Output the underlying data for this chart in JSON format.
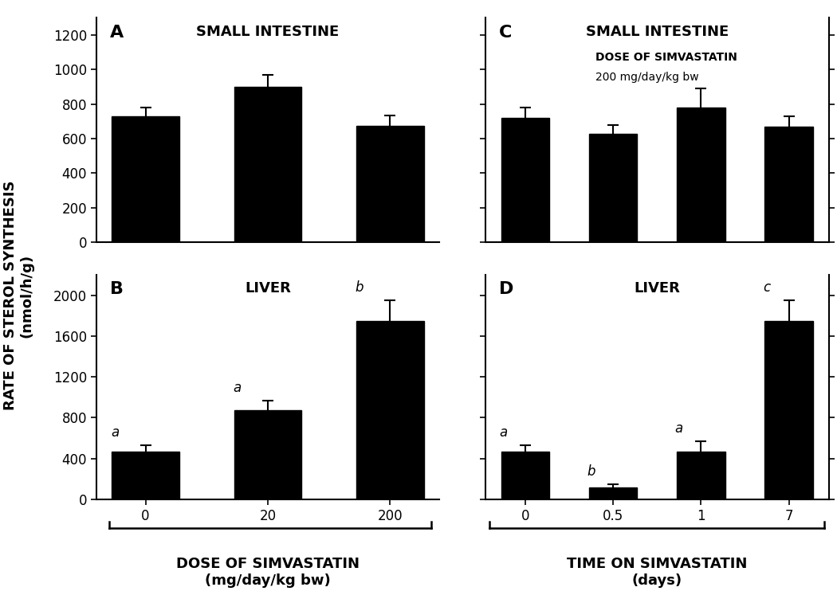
{
  "panel_A": {
    "title": "SMALL INTESTINE",
    "label": "A",
    "x_positions": [
      1,
      2,
      3
    ],
    "values": [
      730,
      900,
      675
    ],
    "errors": [
      50,
      70,
      60
    ],
    "ylim": [
      0,
      1300
    ],
    "yticks": [
      0,
      200,
      400,
      600,
      800,
      1000,
      1200
    ],
    "stat_labels": [
      "",
      "",
      ""
    ]
  },
  "panel_B": {
    "title": "LIVER",
    "label": "B",
    "x_positions": [
      1,
      2,
      3
    ],
    "values": [
      470,
      870,
      1750
    ],
    "errors": [
      60,
      100,
      200
    ],
    "ylim": [
      0,
      2200
    ],
    "yticks": [
      0,
      400,
      800,
      1200,
      1600,
      2000
    ],
    "stat_labels": [
      "a",
      "a",
      "b"
    ],
    "xlabel": "DOSE OF SIMVASTATIN",
    "xlabel2": "(mg/day/kg bw)",
    "xtick_labels": [
      "0",
      "20",
      "200"
    ]
  },
  "panel_C": {
    "title": "SMALL INTESTINE",
    "label": "C",
    "annotation_line1": "DOSE OF SIMVASTATIN",
    "annotation_line2": "200 mg/day/kg bw",
    "x_positions": [
      1,
      2,
      3,
      4
    ],
    "values": [
      720,
      630,
      780,
      670
    ],
    "errors": [
      60,
      50,
      110,
      60
    ],
    "ylim": [
      0,
      1300
    ],
    "yticks": [
      0,
      200,
      400,
      600,
      800,
      1000,
      1200
    ],
    "stat_labels": [
      "",
      "",
      "",
      ""
    ]
  },
  "panel_D": {
    "title": "LIVER",
    "label": "D",
    "x_positions": [
      1,
      2,
      3,
      4
    ],
    "values": [
      470,
      120,
      470,
      1750
    ],
    "errors": [
      60,
      30,
      100,
      200
    ],
    "ylim": [
      0,
      2200
    ],
    "yticks": [
      0,
      400,
      800,
      1200,
      1600,
      2000
    ],
    "stat_labels": [
      "a",
      "b",
      "a",
      "c"
    ],
    "xlabel": "TIME ON SIMVASTATIN",
    "xlabel2": "(days)",
    "xtick_labels": [
      "0",
      "0.5",
      "1",
      "7"
    ]
  },
  "bar_color": "#000000",
  "bar_width": 0.55,
  "ylabel_line1": "RATE OF STEROL SYNTHESIS",
  "ylabel_line2": "(nmol/h/g)",
  "figure_bg": "#ffffff"
}
